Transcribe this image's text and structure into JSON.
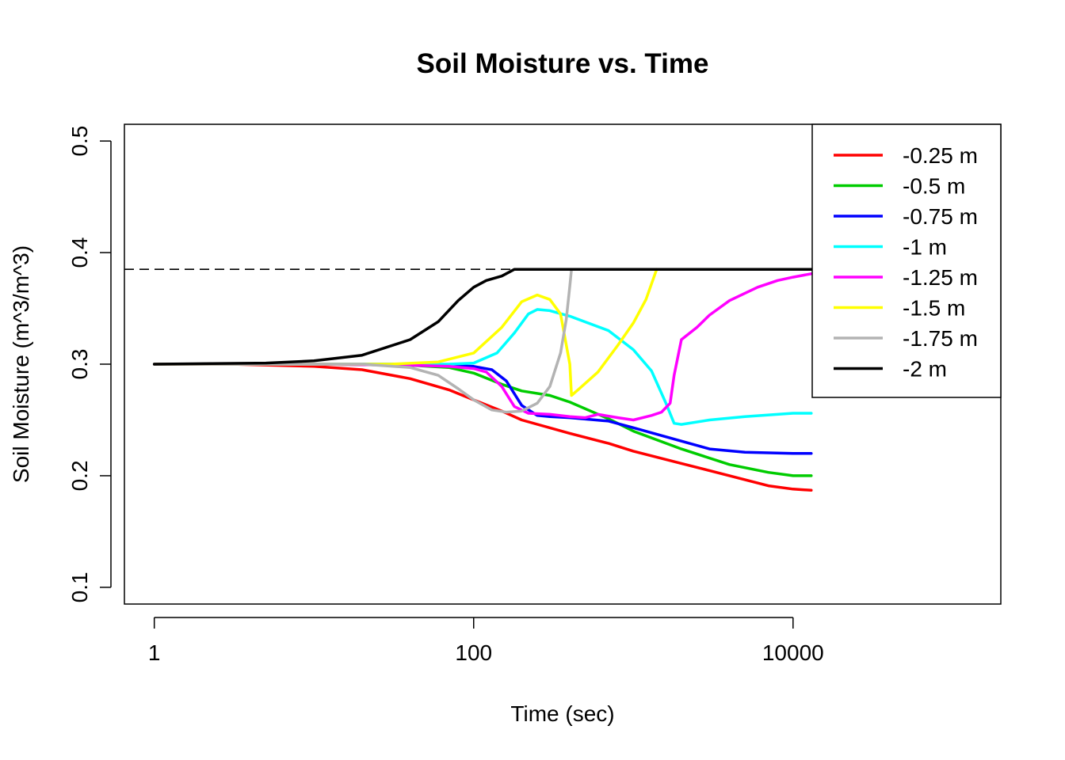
{
  "chart_data": {
    "type": "line",
    "title": "Soil Moisture vs. Time",
    "xlabel": "Time (sec)",
    "ylabel": "Soil Moisture (m^3/m^3)",
    "x_scale": "log10",
    "xlim": [
      0.65,
      200000
    ],
    "ylim": [
      0.085,
      0.515
    ],
    "x_ticks": [
      1,
      100,
      10000
    ],
    "x_tick_labels": [
      "1",
      "100",
      "10000"
    ],
    "y_ticks": [
      0.1,
      0.2,
      0.3,
      0.4,
      0.5
    ],
    "y_tick_labels": [
      "0.1",
      "0.2",
      "0.3",
      "0.4",
      "0.5"
    ],
    "reference_line": {
      "y": 0.385,
      "style": "dashed",
      "color": "#000000"
    },
    "legend": {
      "position": "top-right"
    },
    "series": [
      {
        "name": "-0.25 m",
        "color": "#ff0000",
        "x": [
          1,
          3,
          10,
          20,
          40,
          70,
          100,
          150,
          200,
          400,
          700,
          1000,
          2000,
          4000,
          7000,
          10000,
          13000
        ],
        "y": [
          0.3,
          0.3,
          0.298,
          0.295,
          0.287,
          0.277,
          0.268,
          0.258,
          0.25,
          0.238,
          0.229,
          0.222,
          0.211,
          0.2,
          0.191,
          0.188,
          0.187
        ]
      },
      {
        "name": "-0.5 m",
        "color": "#00cc00",
        "x": [
          1,
          10,
          40,
          70,
          100,
          150,
          200,
          300,
          400,
          700,
          1000,
          2000,
          4000,
          7000,
          10000,
          13000
        ],
        "y": [
          0.3,
          0.3,
          0.299,
          0.297,
          0.292,
          0.282,
          0.276,
          0.272,
          0.266,
          0.251,
          0.24,
          0.224,
          0.21,
          0.203,
          0.2,
          0.2
        ]
      },
      {
        "name": "-0.75 m",
        "color": "#0000ff",
        "x": [
          1,
          10,
          40,
          70,
          100,
          130,
          160,
          200,
          250,
          300,
          400,
          700,
          1000,
          1500,
          2000,
          3000,
          5000,
          10000,
          13000
        ],
        "y": [
          0.3,
          0.3,
          0.3,
          0.299,
          0.298,
          0.295,
          0.285,
          0.263,
          0.254,
          0.253,
          0.252,
          0.249,
          0.243,
          0.236,
          0.231,
          0.224,
          0.221,
          0.22,
          0.22
        ]
      },
      {
        "name": "-1 m",
        "color": "#00ffff",
        "x": [
          1,
          10,
          40,
          70,
          100,
          140,
          180,
          220,
          250,
          300,
          400,
          700,
          1000,
          1300,
          1600,
          1800,
          2000,
          3000,
          5000,
          10000,
          13000
        ],
        "y": [
          0.3,
          0.3,
          0.3,
          0.3,
          0.301,
          0.31,
          0.328,
          0.345,
          0.349,
          0.348,
          0.343,
          0.33,
          0.313,
          0.294,
          0.265,
          0.247,
          0.246,
          0.25,
          0.253,
          0.256,
          0.256
        ]
      },
      {
        "name": "-1.25 m",
        "color": "#ff00ff",
        "x": [
          1,
          10,
          40,
          70,
          100,
          120,
          150,
          180,
          220,
          300,
          400,
          500,
          600,
          800,
          1000,
          1300,
          1500,
          1700,
          1800,
          2000,
          2500,
          3000,
          4000,
          6000,
          8000,
          10000,
          13000
        ],
        "y": [
          0.3,
          0.3,
          0.299,
          0.298,
          0.296,
          0.293,
          0.28,
          0.262,
          0.256,
          0.255,
          0.253,
          0.252,
          0.255,
          0.252,
          0.25,
          0.254,
          0.257,
          0.265,
          0.29,
          0.322,
          0.333,
          0.344,
          0.357,
          0.369,
          0.375,
          0.378,
          0.381
        ]
      },
      {
        "name": "-1.5 m",
        "color": "#ffff00",
        "x": [
          1,
          10,
          30,
          60,
          100,
          150,
          200,
          250,
          300,
          350,
          400,
          410,
          450,
          600,
          800,
          1000,
          1200,
          1400
        ],
        "y": [
          0.3,
          0.3,
          0.3,
          0.302,
          0.31,
          0.333,
          0.356,
          0.362,
          0.358,
          0.345,
          0.3,
          0.272,
          0.277,
          0.293,
          0.317,
          0.337,
          0.358,
          0.385
        ]
      },
      {
        "name": "-1.75 m",
        "color": "#b3b3b3",
        "x": [
          1,
          10,
          20,
          40,
          60,
          80,
          100,
          130,
          160,
          200,
          250,
          300,
          350,
          380,
          400,
          410,
          420
        ],
        "y": [
          0.3,
          0.3,
          0.3,
          0.297,
          0.29,
          0.278,
          0.268,
          0.259,
          0.257,
          0.258,
          0.265,
          0.28,
          0.31,
          0.34,
          0.37,
          0.385,
          0.385
        ]
      },
      {
        "name": "-2 m",
        "color": "#000000",
        "x": [
          1,
          5,
          10,
          20,
          40,
          60,
          80,
          100,
          120,
          150,
          180,
          13000
        ],
        "y": [
          0.3,
          0.301,
          0.303,
          0.308,
          0.322,
          0.338,
          0.357,
          0.369,
          0.375,
          0.379,
          0.385,
          0.385
        ]
      }
    ]
  }
}
